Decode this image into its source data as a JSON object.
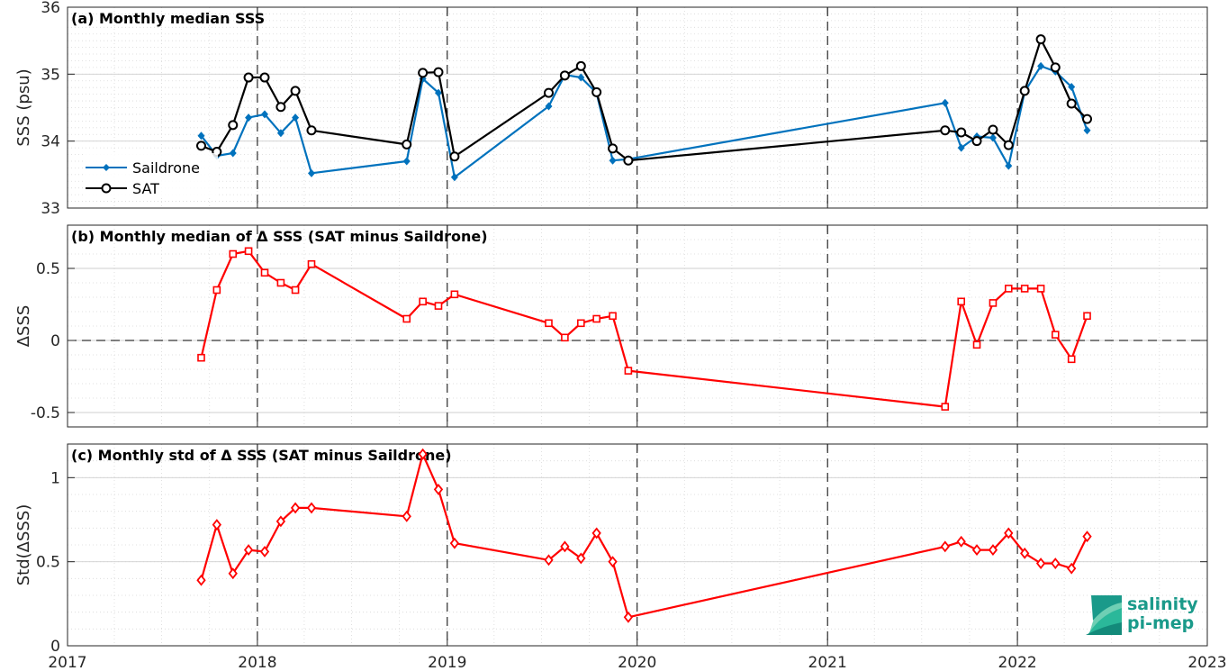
{
  "chart_data": [
    {
      "type": "line",
      "title": "(a) Monthly median SSS",
      "ylabel": "SSS (psu)",
      "xlabel": "",
      "xlim": [
        "2017-01-01",
        "2023-01-01"
      ],
      "ylim": [
        33,
        36
      ],
      "yticks": [
        33,
        34,
        35,
        36
      ],
      "ytick_labels": [
        "33",
        "34",
        "35",
        "36"
      ],
      "grid": true,
      "legend_position": "bottom-left",
      "series": [
        {
          "name": "Saildrone",
          "color": "#0072BD",
          "marker": "diamond-filled",
          "points": [
            [
              "2017-09-15",
              34.08
            ],
            [
              "2017-10-15",
              33.78
            ],
            [
              "2017-11-15",
              33.82
            ],
            [
              "2017-12-15",
              34.35
            ],
            [
              "2018-01-15",
              34.4
            ],
            [
              "2018-02-15",
              34.12
            ],
            [
              "2018-03-15",
              34.35
            ],
            [
              "2018-04-15",
              33.52
            ],
            [
              "2018-10-15",
              33.7
            ],
            [
              "2018-11-15",
              34.93
            ],
            [
              "2018-12-15",
              34.72
            ],
            [
              "2019-01-15",
              33.46
            ],
            [
              "2019-07-15",
              34.52
            ],
            [
              "2019-08-15",
              34.99
            ],
            [
              "2019-09-15",
              34.95
            ],
            [
              "2019-10-15",
              34.72
            ],
            [
              "2019-11-15",
              33.71
            ],
            [
              "2019-12-15",
              33.73
            ],
            [
              "2021-08-15",
              34.57
            ],
            [
              "2021-09-15",
              33.9
            ],
            [
              "2021-10-15",
              34.07
            ],
            [
              "2021-11-15",
              34.05
            ],
            [
              "2021-12-15",
              33.63
            ],
            [
              "2022-01-15",
              34.74
            ],
            [
              "2022-02-15",
              35.12
            ],
            [
              "2022-03-15",
              35.04
            ],
            [
              "2022-04-15",
              34.81
            ],
            [
              "2022-05-15",
              34.16
            ]
          ]
        },
        {
          "name": "SAT",
          "color": "#000000",
          "marker": "circle-open",
          "points": [
            [
              "2017-09-15",
              33.93
            ],
            [
              "2017-10-15",
              33.84
            ],
            [
              "2017-11-15",
              34.24
            ],
            [
              "2017-12-15",
              34.95
            ],
            [
              "2018-01-15",
              34.95
            ],
            [
              "2018-02-15",
              34.51
            ],
            [
              "2018-03-15",
              34.75
            ],
            [
              "2018-04-15",
              34.16
            ],
            [
              "2018-10-15",
              33.95
            ],
            [
              "2018-11-15",
              35.02
            ],
            [
              "2018-12-15",
              35.03
            ],
            [
              "2019-01-15",
              33.77
            ],
            [
              "2019-07-15",
              34.72
            ],
            [
              "2019-08-15",
              34.98
            ],
            [
              "2019-09-15",
              35.12
            ],
            [
              "2019-10-15",
              34.73
            ],
            [
              "2019-11-15",
              33.89
            ],
            [
              "2019-12-15",
              33.71
            ],
            [
              "2021-08-15",
              34.16
            ],
            [
              "2021-09-15",
              34.13
            ],
            [
              "2021-10-15",
              34.0
            ],
            [
              "2021-11-15",
              34.17
            ],
            [
              "2021-12-15",
              33.94
            ],
            [
              "2022-01-15",
              34.75
            ],
            [
              "2022-02-15",
              35.52
            ],
            [
              "2022-03-15",
              35.1
            ],
            [
              "2022-04-15",
              34.56
            ],
            [
              "2022-05-15",
              34.33
            ]
          ]
        }
      ]
    },
    {
      "type": "line",
      "title": "(b) Monthly median of Δ SSS (SAT minus Saildrone)",
      "ylabel": "ΔSSS",
      "xlabel": "",
      "xlim": [
        "2017-01-01",
        "2023-01-01"
      ],
      "ylim": [
        -0.6,
        0.8
      ],
      "yticks": [
        -0.5,
        0,
        0.5
      ],
      "ytick_labels": [
        "-0.5",
        "0",
        "0.5"
      ],
      "zero_line": true,
      "grid": true,
      "series": [
        {
          "color": "#FF0000",
          "marker": "square-open",
          "points": [
            [
              "2017-09-15",
              -0.12
            ],
            [
              "2017-10-15",
              0.35
            ],
            [
              "2017-11-15",
              0.6
            ],
            [
              "2017-12-15",
              0.62
            ],
            [
              "2018-01-15",
              0.47
            ],
            [
              "2018-02-15",
              0.4
            ],
            [
              "2018-03-15",
              0.35
            ],
            [
              "2018-04-15",
              0.53
            ],
            [
              "2018-10-15",
              0.15
            ],
            [
              "2018-11-15",
              0.27
            ],
            [
              "2018-12-15",
              0.24
            ],
            [
              "2019-01-15",
              0.32
            ],
            [
              "2019-07-15",
              0.12
            ],
            [
              "2019-08-15",
              0.02
            ],
            [
              "2019-09-15",
              0.12
            ],
            [
              "2019-10-15",
              0.15
            ],
            [
              "2019-11-15",
              0.17
            ],
            [
              "2019-12-15",
              -0.21
            ],
            [
              "2021-08-15",
              -0.46
            ],
            [
              "2021-09-15",
              0.27
            ],
            [
              "2021-10-15",
              -0.03
            ],
            [
              "2021-11-15",
              0.26
            ],
            [
              "2021-12-15",
              0.36
            ],
            [
              "2022-01-15",
              0.36
            ],
            [
              "2022-02-15",
              0.36
            ],
            [
              "2022-03-15",
              0.04
            ],
            [
              "2022-04-15",
              -0.13
            ],
            [
              "2022-05-15",
              0.17
            ]
          ]
        }
      ]
    },
    {
      "type": "line",
      "title": "(c) Monthly std of Δ SSS (SAT minus Saildrone)",
      "ylabel": "Std(ΔSSS)",
      "xlabel": "",
      "xlim": [
        "2017-01-01",
        "2023-01-01"
      ],
      "ylim": [
        0,
        1.2
      ],
      "yticks": [
        0,
        0.5,
        1
      ],
      "ytick_labels": [
        "0",
        "0.5",
        "1"
      ],
      "xticks": [
        "2017-01-01",
        "2018-01-01",
        "2019-01-01",
        "2020-01-01",
        "2021-01-01",
        "2022-01-01",
        "2023-01-01"
      ],
      "xtick_labels": [
        "2017",
        "2018",
        "2019",
        "2020",
        "2021",
        "2022",
        "2023"
      ],
      "grid": true,
      "series": [
        {
          "color": "#FF0000",
          "marker": "diamond-open",
          "points": [
            [
              "2017-09-15",
              0.39
            ],
            [
              "2017-10-15",
              0.72
            ],
            [
              "2017-11-15",
              0.43
            ],
            [
              "2017-12-15",
              0.57
            ],
            [
              "2018-01-15",
              0.56
            ],
            [
              "2018-02-15",
              0.74
            ],
            [
              "2018-03-15",
              0.82
            ],
            [
              "2018-04-15",
              0.82
            ],
            [
              "2018-10-15",
              0.77
            ],
            [
              "2018-11-15",
              1.14
            ],
            [
              "2018-12-15",
              0.93
            ],
            [
              "2019-01-15",
              0.61
            ],
            [
              "2019-07-15",
              0.51
            ],
            [
              "2019-08-15",
              0.59
            ],
            [
              "2019-09-15",
              0.52
            ],
            [
              "2019-10-15",
              0.67
            ],
            [
              "2019-11-15",
              0.5
            ],
            [
              "2019-12-15",
              0.17
            ],
            [
              "2021-08-15",
              0.59
            ],
            [
              "2021-09-15",
              0.62
            ],
            [
              "2021-10-15",
              0.57
            ],
            [
              "2021-11-15",
              0.57
            ],
            [
              "2021-12-15",
              0.67
            ],
            [
              "2022-01-15",
              0.55
            ],
            [
              "2022-02-15",
              0.49
            ],
            [
              "2022-03-15",
              0.49
            ],
            [
              "2022-04-15",
              0.46
            ],
            [
              "2022-05-15",
              0.65
            ]
          ]
        }
      ]
    }
  ],
  "year_markers": [
    "2018-01-01",
    "2019-01-01",
    "2020-01-01",
    "2021-01-01",
    "2022-01-01"
  ],
  "logo": {
    "line1": "salinity",
    "line2": "pi-mep",
    "color": "#1a9a8a"
  }
}
